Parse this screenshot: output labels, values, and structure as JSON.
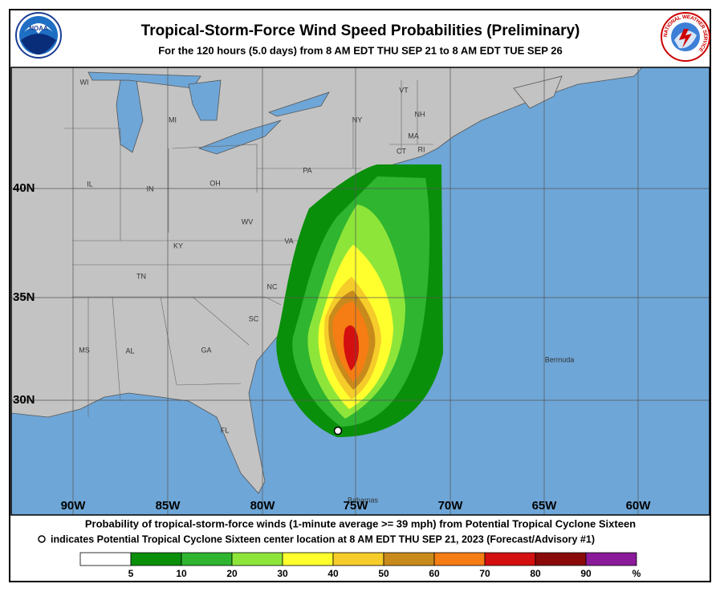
{
  "header": {
    "title": "Tropical-Storm-Force Wind Speed Probabilities (Preliminary)",
    "subtitle": "For the 120 hours (5.0 days) from 8 AM EDT THU SEP 21 to 8 AM EDT TUE SEP 26",
    "noaa_logo": "NOAA",
    "nws_logo": "NATIONAL WEATHER SERVICE"
  },
  "map": {
    "region_labels": [
      "WI",
      "MI",
      "NY",
      "VT",
      "NH",
      "MA",
      "CT",
      "RI",
      "PA",
      "IL",
      "IN",
      "OH",
      "WV",
      "VA",
      "KY",
      "TN",
      "NC",
      "SC",
      "MS",
      "AL",
      "GA",
      "FL",
      "Bermuda",
      "Bahamas"
    ],
    "latitude_labels": [
      "40N",
      "35N",
      "30N"
    ],
    "longitude_labels": [
      "90W",
      "85W",
      "80W",
      "75W",
      "70W",
      "65W",
      "60W"
    ]
  },
  "footer": {
    "caption": "Probability of tropical-storm-force winds (1-minute average >= 39 mph) from Potential Tropical Cyclone Sixteen",
    "marker_note": "indicates Potential Tropical Cyclone Sixteen center location at 8 AM EDT THU SEP 21, 2023 (Forecast/Advisory #1)"
  },
  "legend": {
    "labels": [
      5,
      10,
      20,
      30,
      40,
      50,
      60,
      70,
      80,
      90,
      "%"
    ],
    "colors": [
      "#ffffff",
      "#0a8f0a",
      "#2fb52f",
      "#8ee53a",
      "#ffff2e",
      "#f5cc2a",
      "#c98a1c",
      "#f57d14",
      "#d40f0f",
      "#8a0a0a",
      "#8b1a9a"
    ]
  }
}
